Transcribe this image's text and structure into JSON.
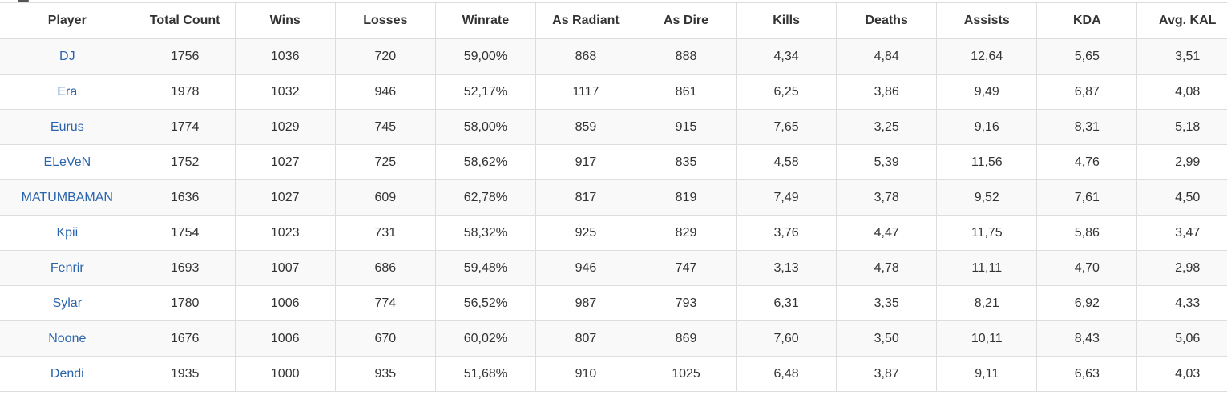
{
  "table": {
    "columns": [
      "Player",
      "Total Count",
      "Wins",
      "Losses",
      "Winrate",
      "As Radiant",
      "As Dire",
      "Kills",
      "Deaths",
      "Assists",
      "KDA",
      "Avg. KAL"
    ],
    "rows": [
      [
        "DJ",
        "1756",
        "1036",
        "720",
        "59,00%",
        "868",
        "888",
        "4,34",
        "4,84",
        "12,64",
        "5,65",
        "3,51"
      ],
      [
        "Era",
        "1978",
        "1032",
        "946",
        "52,17%",
        "1117",
        "861",
        "6,25",
        "3,86",
        "9,49",
        "6,87",
        "4,08"
      ],
      [
        "Eurus",
        "1774",
        "1029",
        "745",
        "58,00%",
        "859",
        "915",
        "7,65",
        "3,25",
        "9,16",
        "8,31",
        "5,18"
      ],
      [
        "ELeVeN",
        "1752",
        "1027",
        "725",
        "58,62%",
        "917",
        "835",
        "4,58",
        "5,39",
        "11,56",
        "4,76",
        "2,99"
      ],
      [
        "MATUMBAMAN",
        "1636",
        "1027",
        "609",
        "62,78%",
        "817",
        "819",
        "7,49",
        "3,78",
        "9,52",
        "7,61",
        "4,50"
      ],
      [
        "Kpii",
        "1754",
        "1023",
        "731",
        "58,32%",
        "925",
        "829",
        "3,76",
        "4,47",
        "11,75",
        "5,86",
        "3,47"
      ],
      [
        "Fenrir",
        "1693",
        "1007",
        "686",
        "59,48%",
        "946",
        "747",
        "3,13",
        "4,78",
        "11,11",
        "4,70",
        "2,98"
      ],
      [
        "Sylar",
        "1780",
        "1006",
        "774",
        "56,52%",
        "987",
        "793",
        "6,31",
        "3,35",
        "8,21",
        "6,92",
        "4,33"
      ],
      [
        "Noone",
        "1676",
        "1006",
        "670",
        "60,02%",
        "807",
        "869",
        "7,60",
        "3,50",
        "10,11",
        "8,43",
        "5,06"
      ],
      [
        "Dendi",
        "1935",
        "1000",
        "935",
        "51,68%",
        "910",
        "1025",
        "6,48",
        "3,87",
        "9,11",
        "6,63",
        "4,03"
      ]
    ]
  },
  "colors": {
    "link": "#2a64ad",
    "text": "#333333",
    "border": "#dddddd",
    "row_alt": "#f9f9f9"
  }
}
